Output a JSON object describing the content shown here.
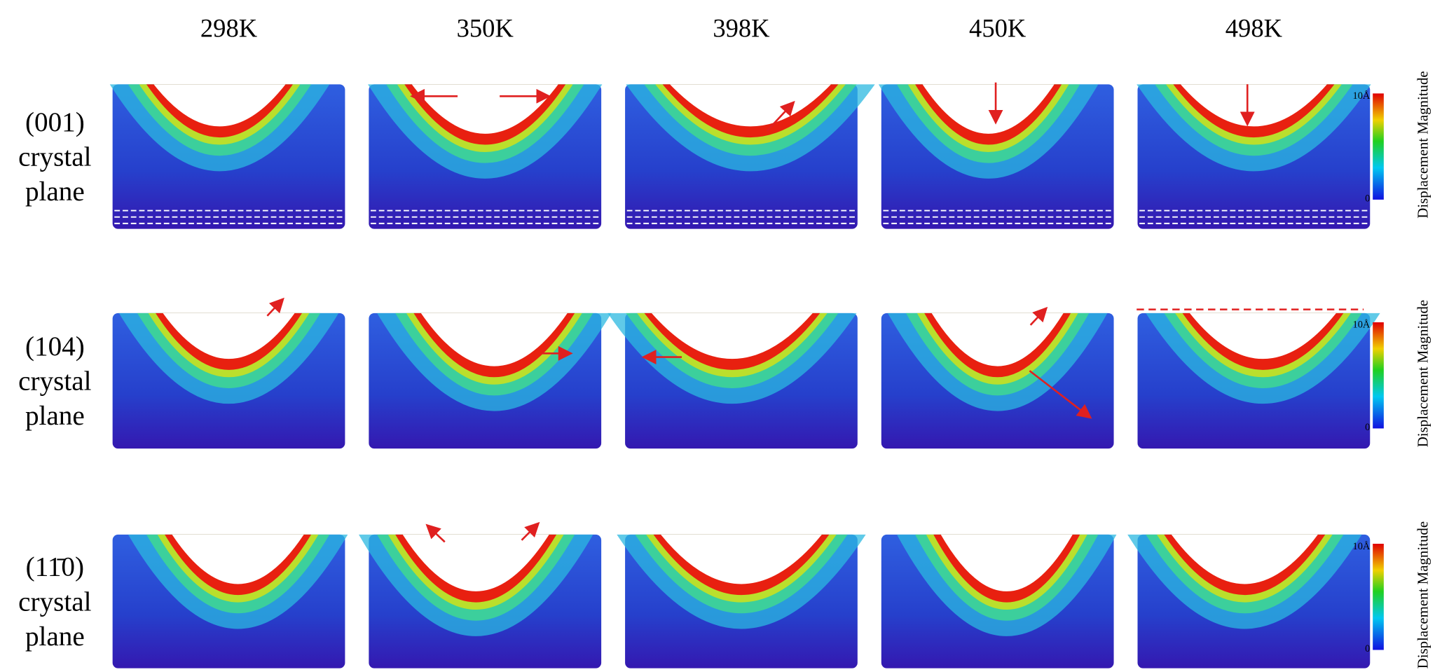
{
  "columns": [
    "298K",
    "350K",
    "398K",
    "450K",
    "498K"
  ],
  "rows": [
    {
      "lines": [
        "(001)",
        "crystal",
        "plane"
      ]
    },
    {
      "lines": [
        "(104)",
        "crystal",
        "plane"
      ]
    },
    {
      "lines": [
        "(11̄0)",
        "crystal",
        "plane"
      ]
    }
  ],
  "colorbar": {
    "max": "10Å",
    "min": "0",
    "title": "Displacement Magnitude"
  }
}
